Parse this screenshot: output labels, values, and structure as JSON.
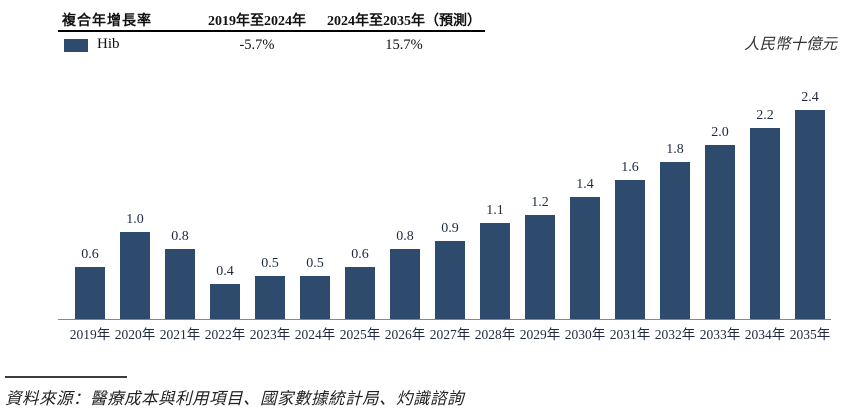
{
  "cagr_table": {
    "row_label": "複合年增長率",
    "series_label": "Hib",
    "columns": [
      {
        "label": "2019年至2024年",
        "value": "-5.7%"
      },
      {
        "label": "2024年至2035年（預測）",
        "value": "15.7%"
      }
    ]
  },
  "unit_label": "人民幣十億元",
  "source_note": "資料來源：醫療成本與利用項目、國家數據統計局、灼識諮詢",
  "colors": {
    "bar": "#2e4a6c",
    "axis": "#888888",
    "text": "#1e2a40"
  },
  "chart_data": {
    "type": "bar",
    "title": "",
    "series_name": "Hib",
    "categories": [
      "2019年",
      "2020年",
      "2021年",
      "2022年",
      "2023年",
      "2024年",
      "2025年",
      "2026年",
      "2027年",
      "2028年",
      "2029年",
      "2030年",
      "2031年",
      "2032年",
      "2033年",
      "2034年",
      "2035年"
    ],
    "values": [
      0.6,
      1.0,
      0.8,
      0.4,
      0.5,
      0.5,
      0.6,
      0.8,
      0.9,
      1.1,
      1.2,
      1.4,
      1.6,
      1.8,
      2.0,
      2.2,
      2.4
    ],
    "xlabel": "",
    "ylabel": "人民幣十億元",
    "ylim": [
      0,
      2.5
    ],
    "grid": false,
    "value_labels": true,
    "legend_position": "top-left-table"
  }
}
